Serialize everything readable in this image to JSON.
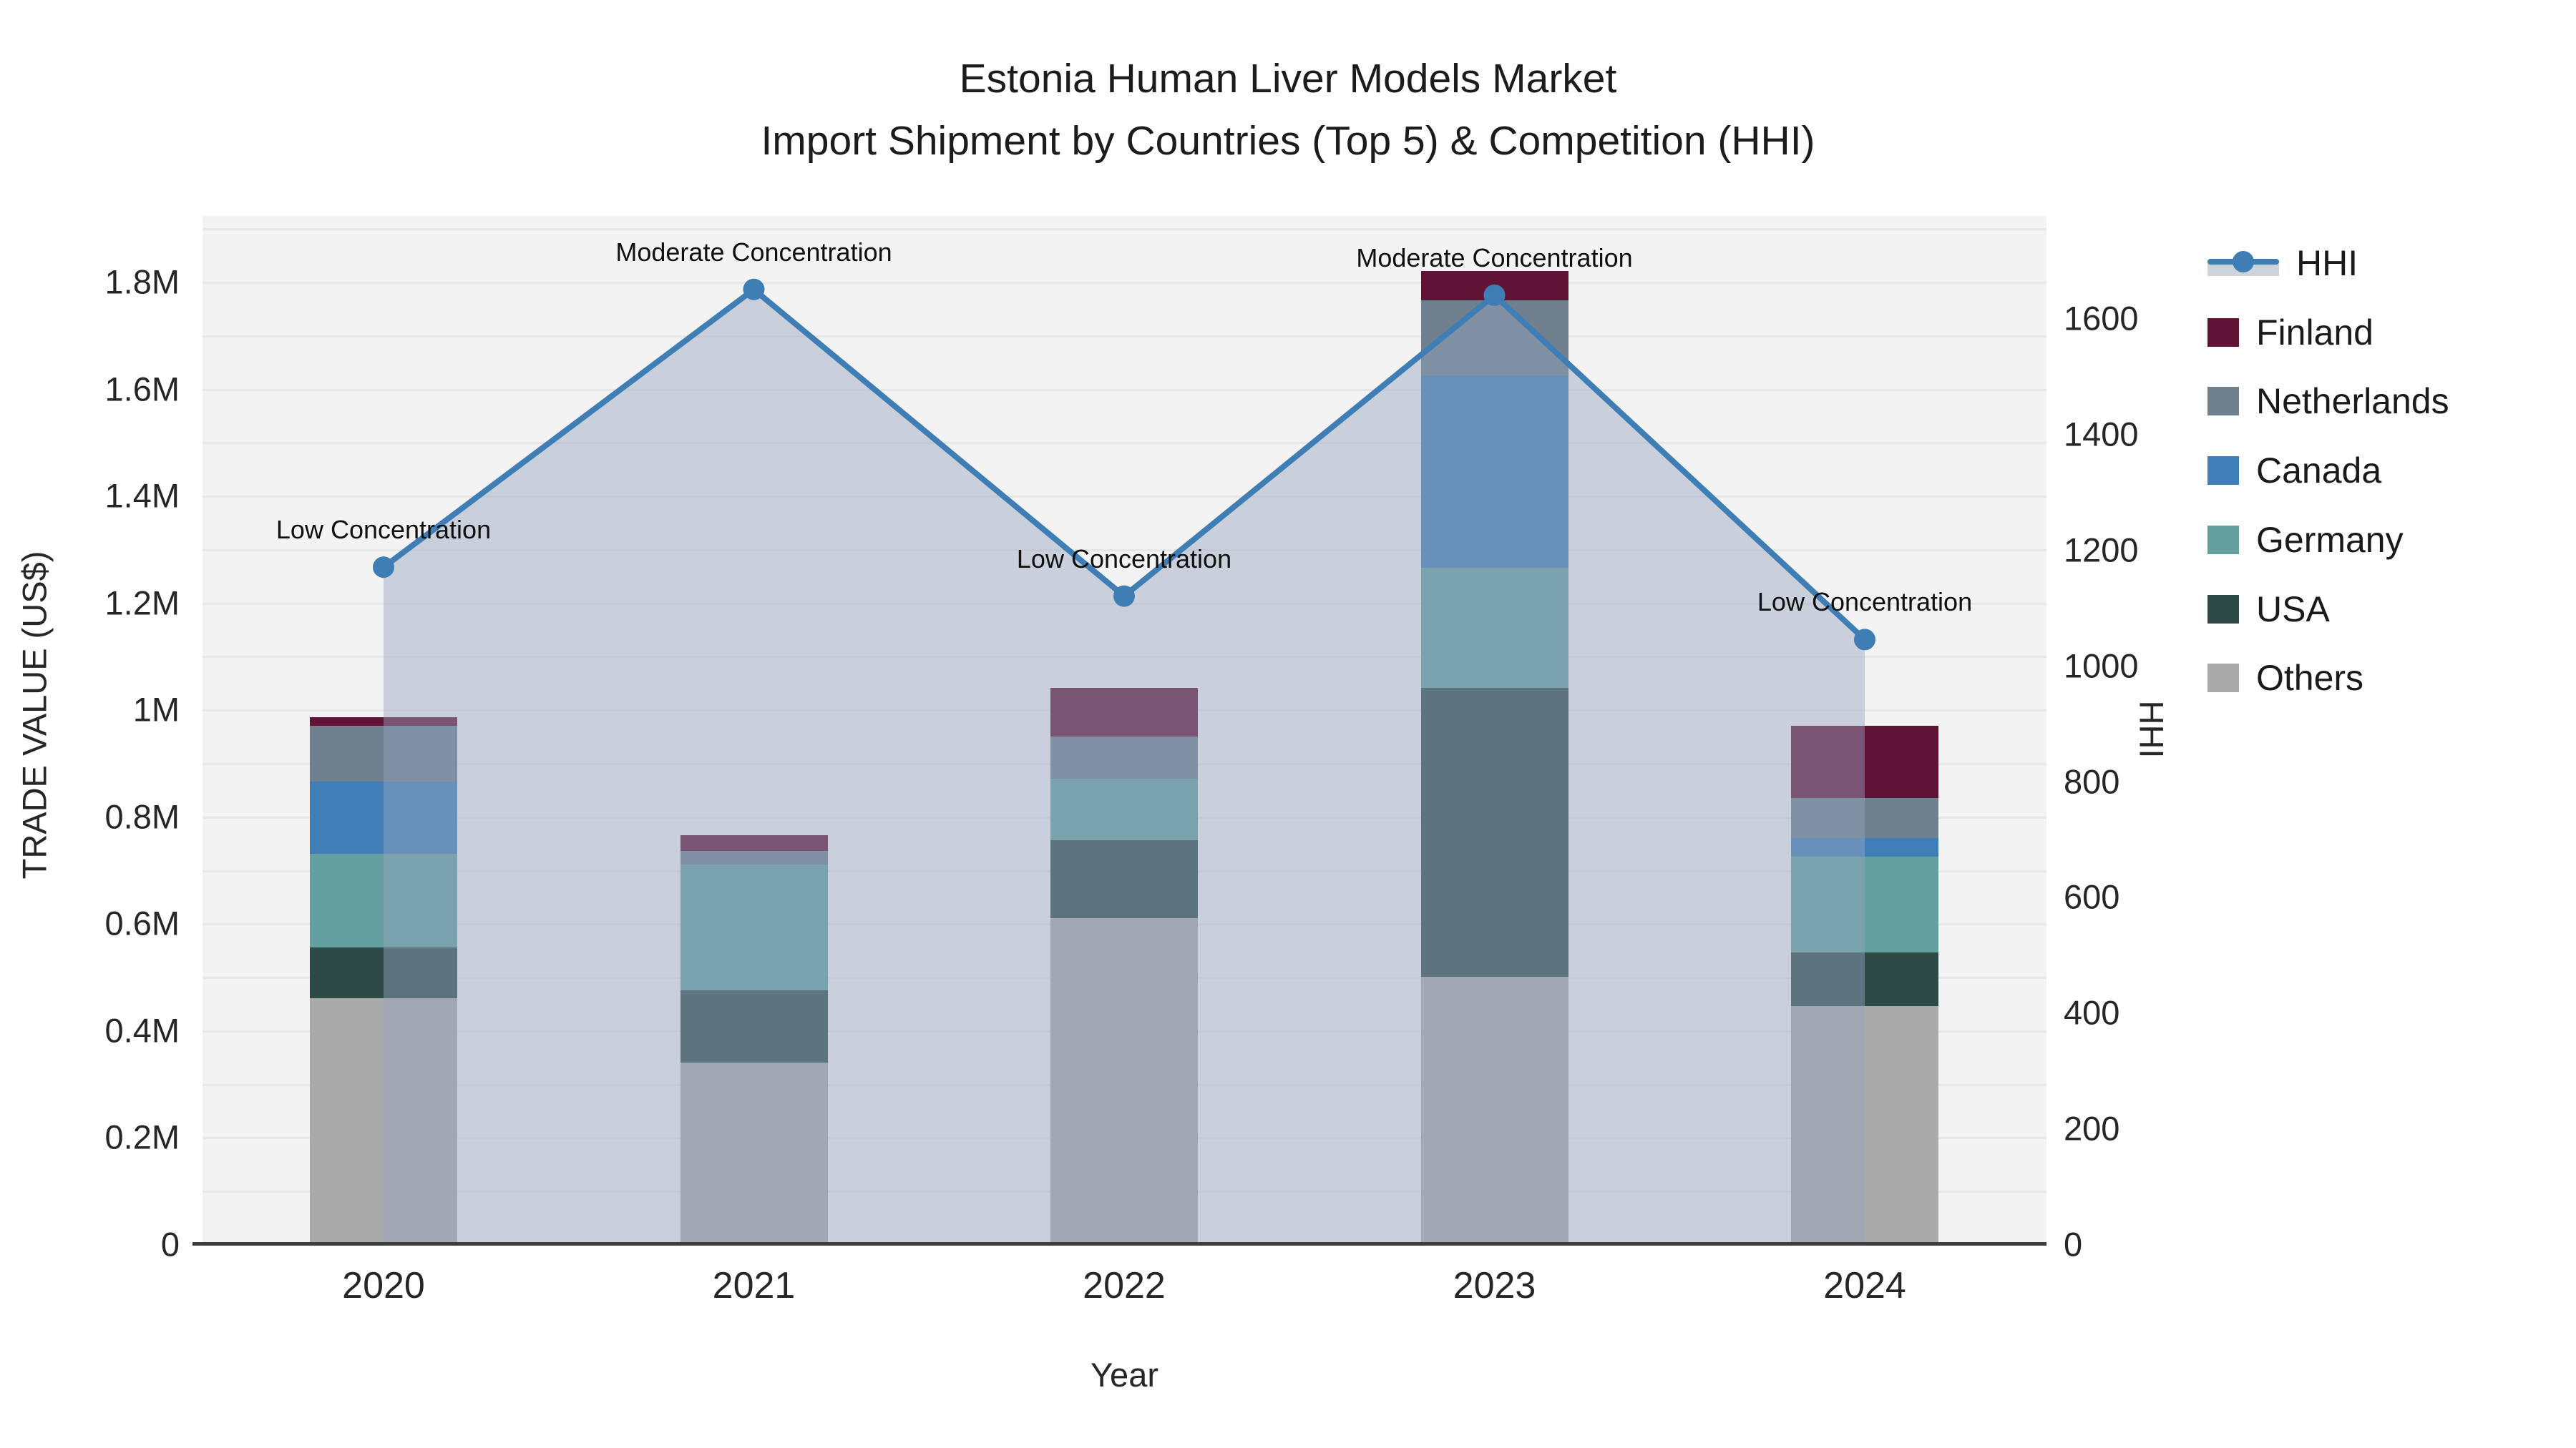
{
  "title": {
    "line1": "Estonia Human Liver Models Market",
    "line2": "Import Shipment by Countries (Top 5) & Competition (HHI)"
  },
  "axes": {
    "x": {
      "title": "Year",
      "categories": [
        "2020",
        "2021",
        "2022",
        "2023",
        "2024"
      ]
    },
    "y_left": {
      "title": "TRADE VALUE (US$)",
      "ticks": [
        {
          "v": 0,
          "label": "0"
        },
        {
          "v": 200000,
          "label": "0.2M"
        },
        {
          "v": 400000,
          "label": "0.4M"
        },
        {
          "v": 600000,
          "label": "0.6M"
        },
        {
          "v": 800000,
          "label": "0.8M"
        },
        {
          "v": 1000000,
          "label": "1M"
        },
        {
          "v": 1200000,
          "label": "1.2M"
        },
        {
          "v": 1400000,
          "label": "1.4M"
        },
        {
          "v": 1600000,
          "label": "1.6M"
        },
        {
          "v": 1800000,
          "label": "1.8M"
        }
      ],
      "max": 1923000,
      "grid_step": 100000,
      "grid_max": 1900000
    },
    "y_right": {
      "title": "HHI",
      "ticks": [
        {
          "v": 0,
          "label": "0"
        },
        {
          "v": 200,
          "label": "200"
        },
        {
          "v": 400,
          "label": "400"
        },
        {
          "v": 600,
          "label": "600"
        },
        {
          "v": 800,
          "label": "800"
        },
        {
          "v": 1000,
          "label": "1000"
        },
        {
          "v": 1200,
          "label": "1200"
        },
        {
          "v": 1400,
          "label": "1400"
        },
        {
          "v": 1600,
          "label": "1600"
        }
      ],
      "max": 1777
    }
  },
  "legend": {
    "items": [
      {
        "label": "HHI",
        "type": "line",
        "color": "#3f7db5",
        "band": "#ccd3dc"
      },
      {
        "label": "Finland",
        "type": "swatch",
        "color": "#611335"
      },
      {
        "label": "Netherlands",
        "type": "swatch",
        "color": "#70808f"
      },
      {
        "label": "Canada",
        "type": "swatch",
        "color": "#407eb8"
      },
      {
        "label": "Germany",
        "type": "swatch",
        "color": "#63a09f"
      },
      {
        "label": "USA",
        "type": "swatch",
        "color": "#2e4a47"
      },
      {
        "label": "Others",
        "type": "swatch",
        "color": "#aaaaaa"
      }
    ]
  },
  "chart_data": {
    "type": "combo-stacked-bar-and-line",
    "title": "Estonia Human Liver Models Market — Import Shipment by Countries (Top 5) & Competition (HHI)",
    "xlabel": "Year",
    "ylabel_left": "TRADE VALUE (US$)",
    "ylabel_right": "HHI",
    "ylim_left": [
      0,
      1923000
    ],
    "ylim_right": [
      0,
      1777
    ],
    "grid": true,
    "legend_position": "right",
    "categories": [
      "2020",
      "2021",
      "2022",
      "2023",
      "2024"
    ],
    "bar_series_bottom_to_top": [
      {
        "name": "Others",
        "color": "#aaaaaa",
        "values": [
          460000,
          340000,
          610000,
          500000,
          445000
        ]
      },
      {
        "name": "USA",
        "color": "#2e4a47",
        "values": [
          95000,
          135000,
          145000,
          540000,
          100000
        ]
      },
      {
        "name": "Germany",
        "color": "#63a09f",
        "values": [
          175000,
          235000,
          115000,
          225000,
          180000
        ]
      },
      {
        "name": "Canada",
        "color": "#407eb8",
        "values": [
          135000,
          0,
          0,
          360000,
          35000
        ]
      },
      {
        "name": "Netherlands",
        "color": "#70808f",
        "values": [
          105000,
          25000,
          80000,
          140000,
          75000
        ]
      },
      {
        "name": "Finland",
        "color": "#611335",
        "values": [
          15000,
          30000,
          90000,
          55000,
          135000
        ]
      }
    ],
    "bar_totals": [
      985000,
      765000,
      1040000,
      1820000,
      970000
    ],
    "line_series": {
      "name": "HHI",
      "axis": "right",
      "color": "#3f7db5",
      "area_fill": "rgba(151,166,190,0.45)",
      "values": [
        1170,
        1650,
        1120,
        1640,
        1045
      ]
    },
    "annotations": [
      {
        "x": "2020",
        "text": "Low Concentration"
      },
      {
        "x": "2021",
        "text": "Moderate Concentration"
      },
      {
        "x": "2022",
        "text": "Low Concentration"
      },
      {
        "x": "2023",
        "text": "Moderate Concentration"
      },
      {
        "x": "2024",
        "text": "Low Concentration"
      }
    ]
  }
}
